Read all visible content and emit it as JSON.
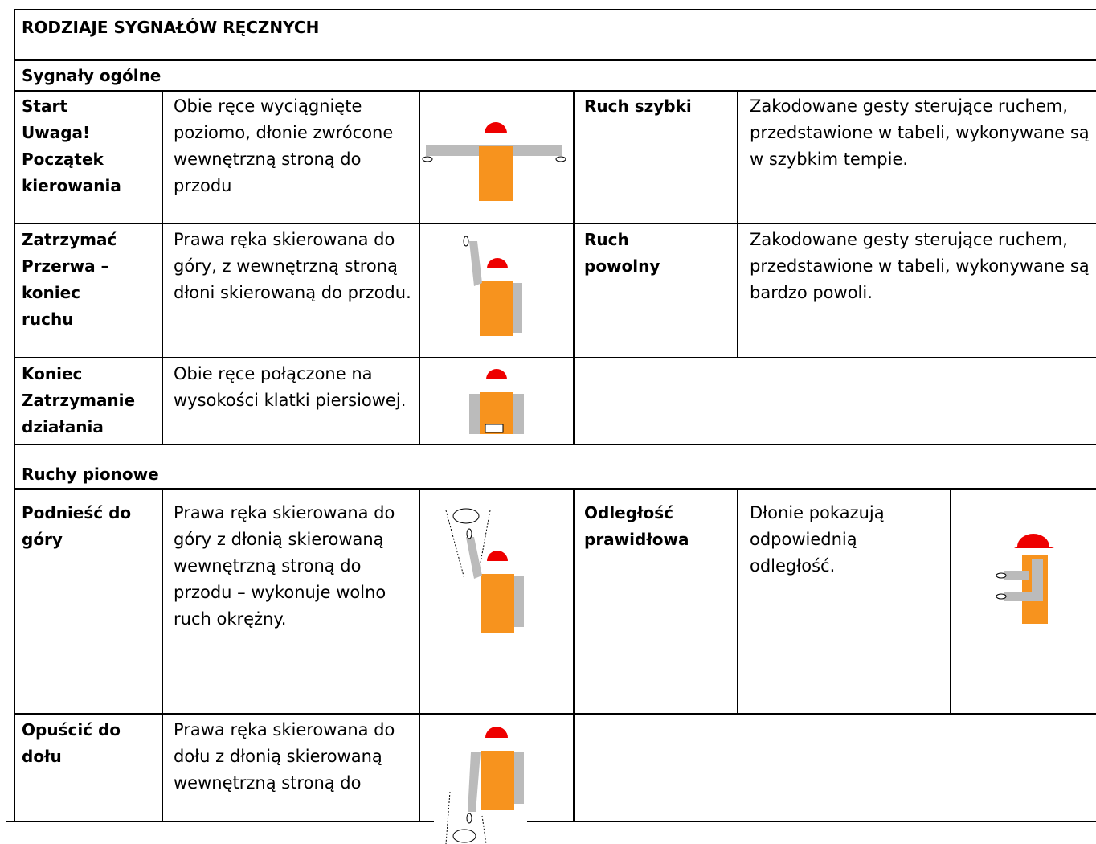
{
  "title": "RODZIAJE SYGNAŁÓW RĘCZNYCH",
  "sections": [
    {
      "title": "Sygnały ogólne",
      "rows": [
        {
          "label": [
            "Start",
            "Uwaga!",
            "Początek",
            "kierowania"
          ],
          "description": "Obie ręce wyciągnięte poziomo, dłonie zwrócone wewnętrzną stroną do przodu",
          "label2": [
            "Ruch szybki"
          ],
          "description2": "Zakodowane gesty sterujące ruchem, przedstawione w tabeli, wykonywane są w szybkim tempie."
        },
        {
          "label": [
            "Zatrzymać",
            "Przerwa –",
            "koniec",
            "ruchu"
          ],
          "description": "Prawa ręka skierowana do góry, z wewnętrzną stroną dłoni skierowaną do przodu.",
          "label2": [
            "Ruch",
            "powolny"
          ],
          "description2": "Zakodowane gesty sterujące ruchem, przedstawione w tabeli, wykonywane są bardzo powoli."
        },
        {
          "label": [
            "Koniec",
            "Zatrzymanie",
            "działania"
          ],
          "description": "Obie ręce połączone na wysokości klatki piersiowej."
        }
      ]
    },
    {
      "title": "Ruchy pionowe",
      "rows": [
        {
          "label": [
            "Podnieść do",
            "góry"
          ],
          "description": "Prawa ręka skierowana do góry z dłonią skierowaną wewnętrzną stroną do przodu – wykonuje wolno ruch okrężny.",
          "label2": [
            "Odległość",
            "prawidłowa"
          ],
          "description2": "Dłonie pokazują odpowiednią odległość."
        },
        {
          "label": [
            "Opuścić do",
            "dołu"
          ],
          "description": "Prawa ręka skierowana do dołu z dłonią skierowaną wewnętrzną stroną do"
        }
      ]
    }
  ]
}
